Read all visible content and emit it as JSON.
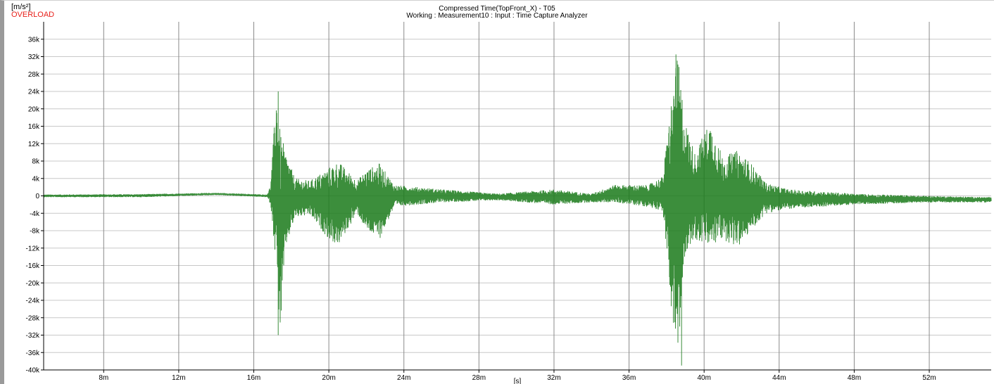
{
  "header": {
    "y_unit": "[m/s²]",
    "status": "OVERLOAD",
    "title": "Compressed Time(TopFront_X) - T05",
    "subtitle": "Working : Measurement10 : Input : Time Capture Analyzer"
  },
  "chart_data": {
    "type": "line",
    "title": "Compressed Time(TopFront_X) - T05",
    "ylabel": "[m/s²]",
    "xlabel": "[s]",
    "xlim": [
      0.0048,
      0.0553
    ],
    "ylim": [
      -40000,
      40000
    ],
    "grid": true,
    "y_ticks": [
      "36k",
      "32k",
      "28k",
      "24k",
      "20k",
      "16k",
      "12k",
      "8k",
      "4k",
      "0",
      "-4k",
      "-8k",
      "-12k",
      "-16k",
      "-20k",
      "-24k",
      "-28k",
      "-32k",
      "-36k",
      "-40k"
    ],
    "x_ticks": [
      "8m",
      "12m",
      "16m",
      "20m",
      "24m",
      "28m",
      "32m",
      "36m",
      "40m",
      "44m",
      "48m",
      "52m"
    ],
    "line_color": "#1a7a1a",
    "peaks": [
      {
        "x": 0.0173,
        "y": 24000
      },
      {
        "x": 0.0173,
        "y": -32000
      },
      {
        "x": 0.0385,
        "y": 32500
      },
      {
        "x": 0.0388,
        "y": -39000
      }
    ],
    "series": [
      {
        "envelope": [
          {
            "t": 0.0048,
            "upper": 300,
            "lower": -300
          },
          {
            "t": 0.01,
            "upper": 400,
            "lower": -300
          },
          {
            "t": 0.014,
            "upper": 700,
            "lower": 200
          },
          {
            "t": 0.0167,
            "upper": 300,
            "lower": -300
          },
          {
            "t": 0.0169,
            "upper": 2500,
            "lower": -2000
          },
          {
            "t": 0.0172,
            "upper": 24000,
            "lower": -16500
          },
          {
            "t": 0.0174,
            "upper": 15000,
            "lower": -32000
          },
          {
            "t": 0.0177,
            "upper": 10000,
            "lower": -12000
          },
          {
            "t": 0.0182,
            "upper": 4000,
            "lower": -5000
          },
          {
            "t": 0.019,
            "upper": 3500,
            "lower": -4500
          },
          {
            "t": 0.02,
            "upper": 6500,
            "lower": -10000
          },
          {
            "t": 0.0205,
            "upper": 8000,
            "lower": -11500
          },
          {
            "t": 0.0215,
            "upper": 3500,
            "lower": -4000
          },
          {
            "t": 0.022,
            "upper": 6000,
            "lower": -8000
          },
          {
            "t": 0.0227,
            "upper": 7500,
            "lower": -10000
          },
          {
            "t": 0.0235,
            "upper": 2500,
            "lower": -2500
          },
          {
            "t": 0.026,
            "upper": 1500,
            "lower": -1500
          },
          {
            "t": 0.029,
            "upper": 500,
            "lower": -1000
          },
          {
            "t": 0.032,
            "upper": 1500,
            "lower": -2000
          },
          {
            "t": 0.034,
            "upper": 500,
            "lower": -1500
          },
          {
            "t": 0.0352,
            "upper": 2500,
            "lower": -1500
          },
          {
            "t": 0.037,
            "upper": 2500,
            "lower": -2500
          },
          {
            "t": 0.0378,
            "upper": 4500,
            "lower": -3500
          },
          {
            "t": 0.0383,
            "upper": 24000,
            "lower": -28000
          },
          {
            "t": 0.0386,
            "upper": 32500,
            "lower": -39000
          },
          {
            "t": 0.039,
            "upper": 17000,
            "lower": -13000
          },
          {
            "t": 0.0395,
            "upper": 10000,
            "lower": -10000
          },
          {
            "t": 0.0403,
            "upper": 17000,
            "lower": -12000
          },
          {
            "t": 0.041,
            "upper": 9000,
            "lower": -10000
          },
          {
            "t": 0.0418,
            "upper": 10500,
            "lower": -12000
          },
          {
            "t": 0.0425,
            "upper": 7500,
            "lower": -8000
          },
          {
            "t": 0.0433,
            "upper": 3000,
            "lower": -4000
          },
          {
            "t": 0.0445,
            "upper": 1500,
            "lower": -3000
          },
          {
            "t": 0.048,
            "upper": 500,
            "lower": -2000
          },
          {
            "t": 0.052,
            "upper": 0,
            "lower": -1500
          },
          {
            "t": 0.0553,
            "upper": -300,
            "lower": -1500
          }
        ]
      }
    ]
  }
}
